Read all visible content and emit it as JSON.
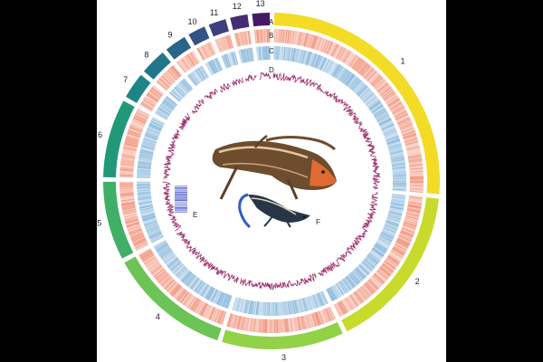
{
  "chromosomes": [
    {
      "label": "1",
      "color": "#f2dc26"
    },
    {
      "label": "2",
      "color": "#c8da2c"
    },
    {
      "label": "3",
      "color": "#92d246"
    },
    {
      "label": "4",
      "color": "#6cc456"
    },
    {
      "label": "5",
      "color": "#3fb066"
    },
    {
      "label": "6",
      "color": "#229878"
    },
    {
      "label": "7",
      "color": "#1d8684"
    },
    {
      "label": "8",
      "color": "#217689"
    },
    {
      "label": "9",
      "color": "#2a6589"
    },
    {
      "label": "10",
      "color": "#345287"
    },
    {
      "label": "11",
      "color": "#3f3f80"
    },
    {
      "label": "12",
      "color": "#452c74"
    },
    {
      "label": "13",
      "color": "#461866"
    }
  ],
  "chromosome_lengths": [
    62,
    38,
    28,
    28,
    18,
    18,
    6,
    6,
    5,
    4,
    4,
    4,
    4
  ],
  "track_labels": {
    "A": "A",
    "B": "B",
    "C": "C",
    "D": "D"
  },
  "inner_labels": {
    "E": "E",
    "F": "F"
  },
  "colors": {
    "heat_track": "#f08a70",
    "blue_track": "#7aaed6",
    "line_track": "#9c2f6e",
    "block_e": "#2f3fbf"
  },
  "icons": [
    "lizard-illustration",
    "blue-tailed-lizard-illustration"
  ]
}
